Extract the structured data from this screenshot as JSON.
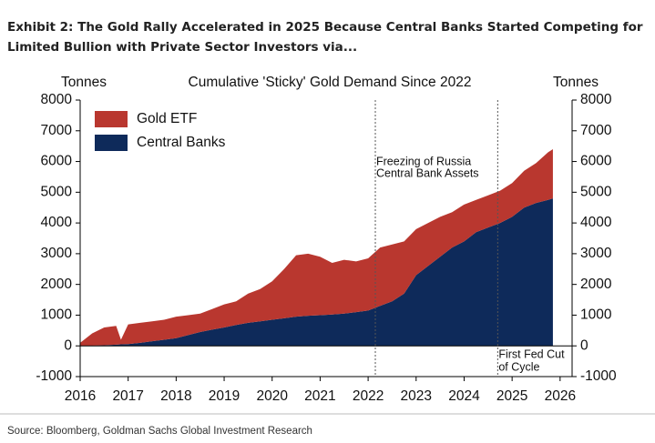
{
  "title": [
    "Exhibit 2: The Gold Rally Accelerated in 2025 Because Central Banks Started Competing for",
    "Limited Bullion with Private Sector Investors via..."
  ],
  "source": "Source: Bloomberg, Goldman Sachs Global Investment Research",
  "chart_data": {
    "type": "stacked_area",
    "title": "Cumulative 'Sticky' Gold Demand Since 2022",
    "ylabel": "Tonnes",
    "y2label": "Tonnes",
    "x": [
      2016,
      2016.25,
      2016.5,
      2016.75,
      2016.85,
      2017,
      2017.25,
      2017.5,
      2017.75,
      2018,
      2018.25,
      2018.5,
      2018.75,
      2019,
      2019.25,
      2019.5,
      2019.75,
      2020,
      2020.25,
      2020.5,
      2020.75,
      2021,
      2021.25,
      2021.5,
      2021.75,
      2022,
      2022.25,
      2022.5,
      2022.75,
      2023,
      2023.25,
      2023.5,
      2023.75,
      2024,
      2024.25,
      2024.5,
      2024.75,
      2025,
      2025.25,
      2025.5,
      2025.75,
      2025.85
    ],
    "series": [
      {
        "name": "Central Banks",
        "color": "#0e2a5a",
        "values": [
          0,
          5,
          20,
          40,
          50,
          60,
          100,
          150,
          200,
          250,
          350,
          450,
          530,
          600,
          680,
          750,
          800,
          850,
          900,
          950,
          980,
          1000,
          1020,
          1050,
          1100,
          1150,
          1300,
          1450,
          1700,
          2300,
          2600,
          2900,
          3200,
          3400,
          3700,
          3850,
          4000,
          4200,
          4500,
          4650,
          4750,
          4800
        ]
      },
      {
        "name": "Gold ETF",
        "color": "#b9372f",
        "values": [
          100,
          400,
          580,
          610,
          150,
          640,
          650,
          650,
          650,
          700,
          650,
          600,
          670,
          750,
          770,
          950,
          1050,
          1250,
          1600,
          2000,
          2020,
          1900,
          1680,
          1750,
          1650,
          1700,
          1900,
          1850,
          1700,
          1500,
          1400,
          1300,
          1150,
          1200,
          1050,
          1050,
          1050,
          1100,
          1200,
          1300,
          1550,
          1600
        ]
      }
    ],
    "xlim": [
      2016,
      2026.25
    ],
    "xticks": [
      2016,
      2017,
      2018,
      2019,
      2020,
      2021,
      2022,
      2023,
      2024,
      2025,
      2026
    ],
    "ylim": [
      -1000,
      8000
    ],
    "yticks": [
      -1000,
      0,
      1000,
      2000,
      3000,
      4000,
      5000,
      6000,
      7000,
      8000
    ],
    "y2lim": [
      -1000,
      8000
    ],
    "y2ticks": [
      -1000,
      0,
      1000,
      2000,
      3000,
      4000,
      5000,
      6000,
      7000,
      8000
    ],
    "legend": "upper left",
    "annotations": [
      {
        "x": 2022.15,
        "lines": [
          "Freezing of Russia",
          "Central Bank Assets"
        ],
        "position": "top"
      },
      {
        "x": 2024.7,
        "lines": [
          "First Fed Cut",
          "of Cycle"
        ],
        "position": "bottom"
      }
    ]
  }
}
